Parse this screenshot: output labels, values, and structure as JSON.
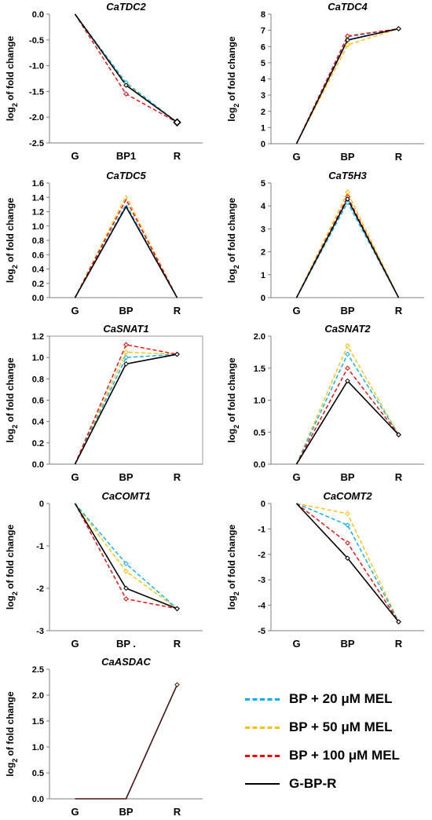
{
  "chart_data": [
    {
      "type": "line",
      "title": "CaTDC2",
      "ylabel": "log2 of fold change",
      "categories": [
        "G",
        "BP1",
        "R"
      ],
      "ylim": [
        -2.5,
        0.0
      ],
      "yticks": [
        0.0,
        -0.5,
        -1.0,
        -1.5,
        -2.0,
        -2.5
      ],
      "ytick_labels": [
        "0.0",
        "-0.5",
        "-1.0",
        "-1.5",
        "-2.0",
        "-2.5"
      ],
      "box": false,
      "marker_end_large": true,
      "series": [
        {
          "values": [
            0,
            -1.33,
            -2.1
          ]
        },
        {
          "values": [
            0,
            -1.36,
            -2.1
          ]
        },
        {
          "values": [
            0,
            -1.55,
            -2.1
          ]
        },
        {
          "values": [
            0,
            -1.38,
            -2.1
          ]
        }
      ]
    },
    {
      "type": "line",
      "title": "CaTDC4",
      "ylabel": "log2 of fold change",
      "categories": [
        "G",
        "BP",
        "R"
      ],
      "ylim": [
        0,
        8
      ],
      "yticks": [
        0,
        1,
        2,
        3,
        4,
        5,
        6,
        7,
        8
      ],
      "ytick_labels": [
        "0",
        "1",
        "2",
        "3",
        "4",
        "5",
        "6",
        "7",
        "8"
      ],
      "box": false,
      "series": [
        {
          "values": [
            0,
            6.6,
            7.1
          ]
        },
        {
          "values": [
            0,
            6.1,
            7.1
          ]
        },
        {
          "values": [
            0,
            6.65,
            7.1
          ]
        },
        {
          "values": [
            0,
            6.4,
            7.1
          ]
        }
      ]
    },
    {
      "type": "line",
      "title": "CaTDC5",
      "ylabel": "log2 of fold change",
      "categories": [
        "G",
        "BP",
        "R"
      ],
      "ylim": [
        0,
        1.6
      ],
      "yticks": [
        0,
        0.2,
        0.4,
        0.6,
        0.8,
        1.0,
        1.2,
        1.4,
        1.6
      ],
      "ytick_labels": [
        "0.0",
        "0.2",
        "0.4",
        "0.6",
        "0.8",
        "1.0",
        "1.2",
        "1.4",
        "1.6"
      ],
      "box": false,
      "no_markers": true,
      "series": [
        {
          "values": [
            0,
            1.3,
            0
          ]
        },
        {
          "values": [
            0,
            1.42,
            0
          ]
        },
        {
          "values": [
            0,
            1.37,
            0
          ]
        },
        {
          "values": [
            0,
            1.27,
            0
          ]
        }
      ]
    },
    {
      "type": "line",
      "title": "CaT5H3",
      "ylabel": "log2 of fold change",
      "categories": [
        "G",
        "BP",
        "R"
      ],
      "ylim": [
        0,
        5
      ],
      "yticks": [
        0,
        1,
        2,
        3,
        4,
        5
      ],
      "ytick_labels": [
        "0",
        "1",
        "2",
        "3",
        "4",
        "5"
      ],
      "box": false,
      "peak_markers_only": true,
      "series": [
        {
          "values": [
            0,
            4.15,
            0
          ]
        },
        {
          "values": [
            0,
            4.6,
            0
          ]
        },
        {
          "values": [
            0,
            4.4,
            0
          ]
        },
        {
          "values": [
            0,
            4.3,
            0
          ]
        }
      ]
    },
    {
      "type": "line",
      "title": "CaSNAT1",
      "ylabel": "log2 of fold change",
      "categories": [
        "G",
        "BP",
        "R"
      ],
      "ylim": [
        0,
        1.2
      ],
      "yticks": [
        0,
        0.2,
        0.4,
        0.6,
        0.8,
        1.0,
        1.2
      ],
      "ytick_labels": [
        "0.0",
        "0.2",
        "0.4",
        "0.6",
        "0.8",
        "1.0",
        "1.2"
      ],
      "box": true,
      "series": [
        {
          "values": [
            0,
            1.0,
            1.03
          ]
        },
        {
          "values": [
            0,
            1.05,
            1.03
          ]
        },
        {
          "values": [
            0,
            1.12,
            1.03
          ]
        },
        {
          "values": [
            0,
            0.94,
            1.03
          ]
        }
      ]
    },
    {
      "type": "line",
      "title": "CaSNAT2",
      "ylabel": "log2 of fold change",
      "categories": [
        "G",
        "BP",
        "R"
      ],
      "ylim": [
        0,
        2.0
      ],
      "yticks": [
        0,
        0.5,
        1.0,
        1.5,
        2.0
      ],
      "ytick_labels": [
        "0.0",
        "0.5",
        "1.0",
        "1.5",
        "2.0"
      ],
      "box": false,
      "series": [
        {
          "values": [
            0,
            1.72,
            0.46
          ]
        },
        {
          "values": [
            0,
            1.85,
            0.46
          ]
        },
        {
          "values": [
            0,
            1.5,
            0.46
          ]
        },
        {
          "values": [
            0,
            1.3,
            0.46
          ]
        }
      ]
    },
    {
      "type": "line",
      "title": "CaCOMT1",
      "ylabel": "log2 of fold change",
      "categories": [
        "G",
        "BP .",
        "R"
      ],
      "ylim": [
        -3,
        0
      ],
      "yticks": [
        0,
        -1,
        -2,
        -3
      ],
      "ytick_labels": [
        "0",
        "-1",
        "-2",
        "-3"
      ],
      "box": false,
      "series": [
        {
          "values": [
            0,
            -1.42,
            -2.48
          ]
        },
        {
          "values": [
            0,
            -1.6,
            -2.48
          ]
        },
        {
          "values": [
            0,
            -2.25,
            -2.48
          ]
        },
        {
          "values": [
            0,
            -2.0,
            -2.48
          ]
        }
      ]
    },
    {
      "type": "line",
      "title": "CaCOMT2",
      "ylabel": "log2 of fold change",
      "categories": [
        "G",
        "BP",
        "R"
      ],
      "ylim": [
        -5,
        0
      ],
      "yticks": [
        0,
        -1,
        -2,
        -3,
        -4,
        -5
      ],
      "ytick_labels": [
        "0",
        "-1",
        "-2",
        "-3",
        "-4",
        "-5"
      ],
      "box": false,
      "series": [
        {
          "values": [
            0,
            -0.85,
            -4.65
          ]
        },
        {
          "values": [
            0,
            -0.4,
            -4.65
          ]
        },
        {
          "values": [
            0,
            -1.55,
            -4.65
          ]
        },
        {
          "values": [
            0,
            -2.15,
            -4.65
          ]
        }
      ]
    },
    {
      "type": "line",
      "title": "CaASDAC",
      "ylabel": "log2 of fold change",
      "categories": [
        "G",
        "BP",
        "R"
      ],
      "ylim": [
        0,
        2.5
      ],
      "yticks": [
        0,
        0.5,
        1.0,
        1.5,
        2.0,
        2.5
      ],
      "ytick_labels": [
        "0.0",
        "0.5",
        "1.0",
        "1.5",
        "2.0",
        "2.5"
      ],
      "box": false,
      "dark_only": true,
      "series": [
        {
          "values": [
            0,
            0,
            2.2
          ]
        },
        {
          "values": [
            0,
            0,
            2.2
          ]
        },
        {
          "values": [
            0,
            0,
            2.2
          ]
        },
        {
          "values": [
            0,
            0,
            2.2
          ]
        }
      ]
    }
  ],
  "legend": {
    "items": [
      {
        "label": "BP + 20 μM MEL",
        "color": "#00b0f0",
        "style": "dashed"
      },
      {
        "label": "BP + 50 μM MEL",
        "color": "#ffc000",
        "style": "dashed"
      },
      {
        "label": "BP + 100 μM MEL",
        "color": "#ff0000",
        "style": "dashed"
      },
      {
        "label": "G-BP-R",
        "color": "#000000",
        "style": "solid"
      }
    ]
  },
  "series_colors": [
    "#00b0f0",
    "#ffc000",
    "#ff0000",
    "#000000"
  ],
  "series_styles": [
    "dashed",
    "dashed",
    "dashed",
    "solid"
  ]
}
